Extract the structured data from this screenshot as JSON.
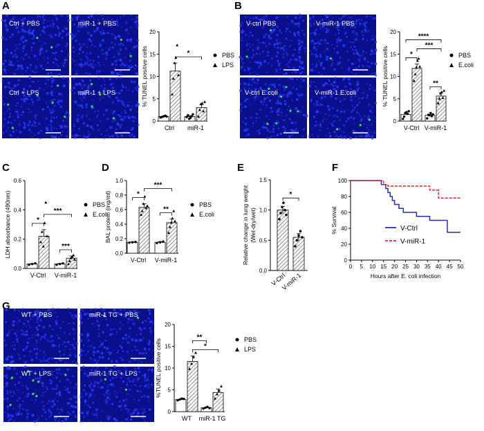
{
  "colors": {
    "micrograph_bg": "#0a0f8c",
    "nucleus": "#2b3cff",
    "tunel_green": "#39e05a",
    "km_vctrl": "#1f2fb0",
    "km_vmir1": "#e0242a",
    "bar_fill": "#ffffff",
    "hatch": "#555555"
  },
  "panels": {
    "A": {
      "label": "A",
      "images": [
        "Ctrl + PBS",
        "miR-1 + PBS",
        "Ctrl + LPS",
        "miR-1 + LPS"
      ]
    },
    "B": {
      "label": "B",
      "images": [
        "V-ctrl PBS",
        "V-miR-1 PBS",
        "V-ctrl E.coli",
        "V-miR-1 E.coli"
      ]
    },
    "C": {
      "label": "C"
    },
    "D": {
      "label": "D"
    },
    "E": {
      "label": "E"
    },
    "F": {
      "label": "F"
    },
    "G": {
      "label": "G",
      "images": [
        "WT + PBS",
        "miR-1 TG + PBS",
        "WT + LPS",
        "miR-1 TG + LPS"
      ]
    }
  },
  "chart_data": [
    {
      "id": "A",
      "type": "bar",
      "ylabel": "% TUNEL positive cells",
      "ylim": [
        0,
        20
      ],
      "yticks": [
        0,
        5,
        10,
        15,
        20
      ],
      "groups": [
        "Ctrl",
        "miR-1"
      ],
      "series": [
        {
          "name": "PBS",
          "values": [
            1.0,
            1.0
          ],
          "sem": [
            0.1,
            0.2
          ]
        },
        {
          "name": "LPS",
          "values": [
            11.2,
            3.0
          ],
          "sem": [
            1.8,
            0.7
          ]
        }
      ],
      "points": [
        [
          [
            0.8,
            0.9,
            1.0,
            1.1,
            1.2,
            1.0
          ],
          [
            0.9,
            1.3,
            0.5,
            0.7,
            1.1,
            1.5
          ]
        ],
        [
          [
            6.0,
            9.5,
            13.0,
            14.2,
            17.0,
            10.3
          ],
          [
            1.0,
            2.5,
            3.8,
            4.0,
            2.2,
            4.3
          ]
        ]
      ],
      "legend": [
        "PBS",
        "LPS"
      ],
      "significance": [
        {
          "from": 1,
          "to": 3,
          "level": 1,
          "label": "*"
        }
      ]
    },
    {
      "id": "B",
      "type": "bar",
      "ylabel": "% TUNEL positive cells",
      "ylim": [
        0,
        20
      ],
      "yticks": [
        0,
        5,
        10,
        15,
        20
      ],
      "groups": [
        "V-Ctrl",
        "V-miR-1"
      ],
      "series": [
        {
          "name": "PBS",
          "values": [
            1.5,
            1.3
          ],
          "sem": [
            0.3,
            0.2
          ]
        },
        {
          "name": "E.coli",
          "values": [
            11.8,
            5.6
          ],
          "sem": [
            1.0,
            0.7
          ]
        }
      ],
      "points": [
        [
          [
            0.5,
            1.0,
            1.8,
            2.0,
            1.6,
            2.2
          ],
          [
            0.6,
            1.4,
            1.3,
            1.8,
            1.1,
            1.5
          ]
        ],
        [
          [
            9.0,
            10.5,
            12.0,
            13.5,
            14.0,
            12.2
          ],
          [
            4.0,
            5.0,
            6.2,
            6.5,
            5.2,
            6.8
          ]
        ]
      ],
      "legend": [
        "PBS",
        "E.coli"
      ],
      "significance": [
        {
          "from": 0,
          "to": 1,
          "level": 1,
          "label": "*"
        },
        {
          "from": 2,
          "to": 3,
          "level": 1,
          "label": "**"
        },
        {
          "from": 1,
          "to": 3,
          "level": 2,
          "label": "***"
        },
        {
          "from": 0,
          "to": 3,
          "level": 3,
          "label": "****"
        }
      ]
    },
    {
      "id": "C",
      "type": "bar",
      "ylabel": "LDH absorbance (490nm)",
      "ylim": [
        0,
        0.6
      ],
      "yticks": [
        0.0,
        0.2,
        0.4,
        0.6
      ],
      "groups": [
        "V-Ctrl",
        "V-miR-1"
      ],
      "series": [
        {
          "name": "PBS",
          "values": [
            0.03,
            0.03
          ],
          "sem": [
            0.003,
            0.004
          ]
        },
        {
          "name": "E.coli",
          "values": [
            0.22,
            0.07
          ],
          "sem": [
            0.045,
            0.015
          ]
        }
      ],
      "points": [
        [
          [
            0.025,
            0.03,
            0.035
          ],
          [
            0.025,
            0.03,
            0.035
          ]
        ],
        [
          [
            0.18,
            0.25,
            0.15,
            0.31,
            0.45,
            0.22
          ],
          [
            0.03,
            0.05,
            0.07,
            0.08,
            0.09,
            0.06
          ]
        ]
      ],
      "legend": [
        "PBS",
        "E.coli"
      ],
      "significance": [
        {
          "from": 0,
          "to": 1,
          "level": 1,
          "label": "*"
        },
        {
          "from": 2,
          "to": 3,
          "level": 1,
          "label": "***"
        },
        {
          "from": 1,
          "to": 3,
          "level": 2,
          "label": "***"
        }
      ]
    },
    {
      "id": "D",
      "type": "bar",
      "ylabel": "BAL protein (mg/ml)",
      "ylim": [
        0,
        1.0
      ],
      "yticks": [
        0.0,
        0.2,
        0.4,
        0.6,
        0.8,
        1.0
      ],
      "groups": [
        "V-Ctrl",
        "V-miR-1"
      ],
      "series": [
        {
          "name": "PBS",
          "values": [
            0.15,
            0.15
          ],
          "sem": [
            0.005,
            0.01
          ]
        },
        {
          "name": "E.coli",
          "values": [
            0.63,
            0.42
          ],
          "sem": [
            0.05,
            0.05
          ]
        }
      ],
      "points": [
        [
          [
            0.145,
            0.15,
            0.155
          ],
          [
            0.14,
            0.15,
            0.16
          ]
        ],
        [
          [
            0.53,
            0.58,
            0.68,
            0.78,
            0.62,
            0.65
          ],
          [
            0.28,
            0.36,
            0.42,
            0.48,
            0.58,
            0.44
          ]
        ]
      ],
      "legend": [
        "PBS",
        "E.coli"
      ],
      "significance": [
        {
          "from": 0,
          "to": 1,
          "level": 1,
          "label": "*"
        },
        {
          "from": 2,
          "to": 3,
          "level": 1,
          "label": "**"
        },
        {
          "from": 1,
          "to": 3,
          "level": 2,
          "label": "***"
        }
      ]
    },
    {
      "id": "E",
      "type": "bar",
      "ylabel": "Relative change in lung weight (Wet-dry/wet)",
      "ylim": [
        0,
        1.5
      ],
      "yticks": [
        0.0,
        0.5,
        1.0,
        1.5
      ],
      "categories": [
        "V-Ctrl",
        "V-miR-1"
      ],
      "values": [
        1.0,
        0.55
      ],
      "sem": [
        0.06,
        0.06
      ],
      "points": [
        [
          0.85,
          0.95,
          1.05,
          1.12,
          1.0,
          0.92
        ],
        [
          0.4,
          0.5,
          0.58,
          0.65,
          0.55
        ]
      ],
      "significance": [
        {
          "from": 0,
          "to": 1,
          "level": 1,
          "label": "*"
        }
      ]
    },
    {
      "id": "F",
      "type": "line",
      "xlabel": "Hours after E. coli infection",
      "ylabel": "% Survival",
      "xlim": [
        0,
        50
      ],
      "ylim": [
        0,
        100
      ],
      "xticks": [
        0,
        5,
        10,
        15,
        20,
        25,
        30,
        35,
        40,
        45,
        50
      ],
      "yticks": [
        0,
        20,
        40,
        60,
        80,
        100
      ],
      "series": [
        {
          "name": "V-Ctrl",
          "style": "solid",
          "x": [
            0,
            14,
            16,
            17,
            18,
            19,
            20,
            22,
            24,
            30,
            36,
            44,
            50
          ],
          "y": [
            100,
            95,
            90,
            85,
            80,
            75,
            70,
            65,
            60,
            55,
            50,
            35,
            35
          ]
        },
        {
          "name": "V-miR-1",
          "style": "dashed",
          "x": [
            0,
            15,
            17,
            36,
            40,
            45,
            50
          ],
          "y": [
            100,
            95,
            93,
            88,
            78,
            78,
            78
          ]
        }
      ]
    },
    {
      "id": "G",
      "type": "bar",
      "ylabel": "%TUNEL positive cells",
      "ylim": [
        0,
        20
      ],
      "yticks": [
        0,
        5,
        10,
        15,
        20
      ],
      "groups": [
        "WT",
        "miR-1 TG"
      ],
      "series": [
        {
          "name": "PBS",
          "values": [
            2.8,
            0.9
          ],
          "sem": [
            0.15,
            0.15
          ]
        },
        {
          "name": "LPS",
          "values": [
            11.5,
            4.4
          ],
          "sem": [
            1.3,
            0.8
          ]
        }
      ],
      "points": [
        [
          [
            2.6,
            2.8,
            3.0,
            2.9
          ],
          [
            0.7,
            0.9,
            1.1,
            0.8
          ]
        ],
        [
          [
            9.8,
            11.0,
            12.5,
            13.5
          ],
          [
            3.0,
            4.0,
            4.8,
            5.8
          ]
        ]
      ],
      "legend": [
        "PBS",
        "LPS"
      ],
      "significance": [
        {
          "from": 1,
          "to": 3,
          "level": 1,
          "label": "*"
        },
        {
          "from": 1,
          "to": 2,
          "level": 2,
          "label": "**"
        }
      ]
    }
  ]
}
